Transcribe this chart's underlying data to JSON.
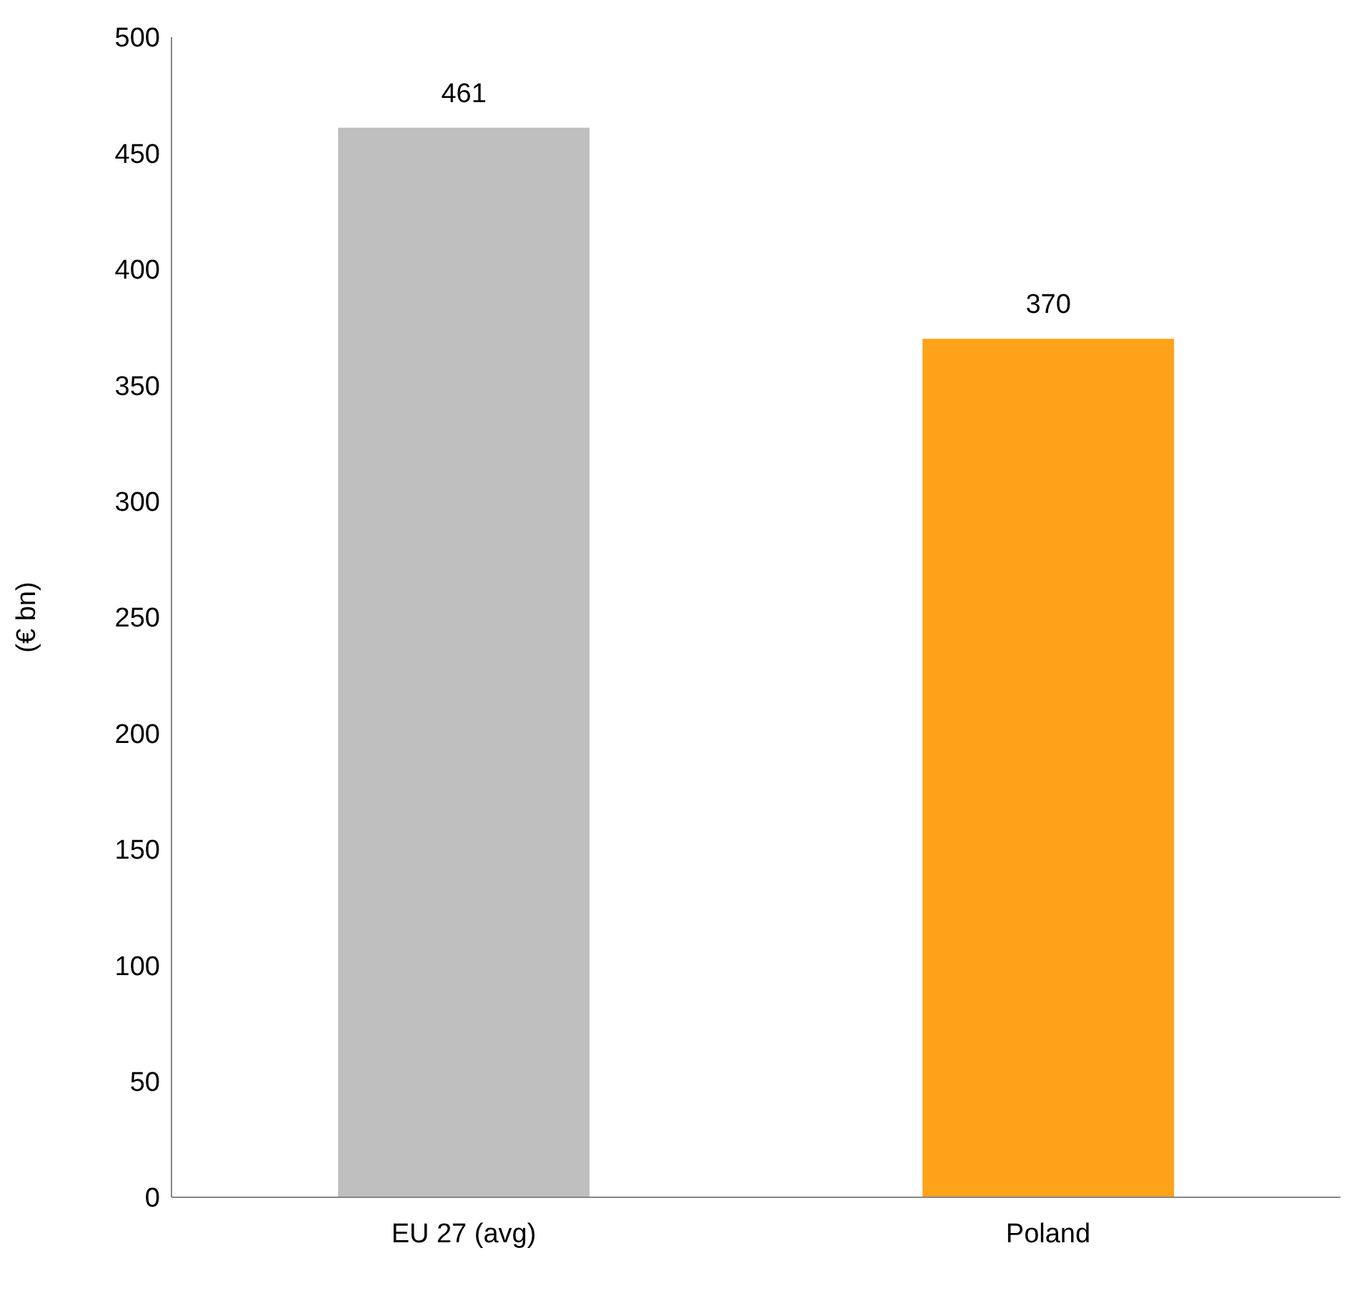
{
  "chart_data": {
    "type": "bar",
    "ylabel": "(€ bn)",
    "categories": [
      "EU 27 (avg)",
      "Poland"
    ],
    "values": [
      461,
      370
    ],
    "colors": [
      "#bfbfbf",
      "#ffa31a"
    ],
    "ylim": [
      0,
      500
    ],
    "yticks": [
      0,
      50,
      100,
      150,
      200,
      250,
      300,
      350,
      400,
      450,
      500
    ],
    "grid": false,
    "data_labels": true
  }
}
